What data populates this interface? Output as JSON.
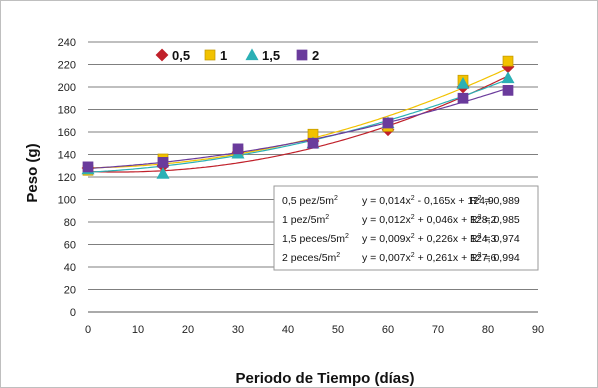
{
  "chart_data": {
    "type": "scatter",
    "xlabel": "Periodo de Tiempo (días)",
    "ylabel": "Peso (g)",
    "xlim": [
      0,
      90
    ],
    "ylim": [
      0,
      240
    ],
    "x_ticks": [
      "0",
      "10",
      "20",
      "30",
      "40",
      "50",
      "60",
      "70",
      "80",
      "90"
    ],
    "y_ticks": [
      "0",
      "20",
      "40",
      "60",
      "80",
      "100",
      "120",
      "140",
      "160",
      "180",
      "200",
      "220",
      "240"
    ],
    "grid": "horizontal",
    "legend_position": "top-left",
    "trendline": "polynomial-2",
    "series": [
      {
        "name": "0,5",
        "marker": "diamond",
        "color": "#c0202a",
        "x": [
          0,
          15,
          30,
          45,
          60,
          75,
          84
        ],
        "y": [
          128,
          130,
          142,
          152,
          162,
          200,
          218
        ],
        "fit": [
          0.014,
          -0.165,
          124.9
        ]
      },
      {
        "name": "1",
        "marker": "square",
        "color": "#f2c200",
        "x": [
          0,
          15,
          30,
          45,
          60,
          75,
          84
        ],
        "y": [
          126,
          136,
          142,
          158,
          165,
          206,
          223
        ],
        "fit": [
          0.012,
          0.046,
          128.2
        ]
      },
      {
        "name": "1,5",
        "marker": "triangle",
        "color": "#2bb0b5",
        "x": [
          0,
          15,
          30,
          45,
          60,
          75,
          84
        ],
        "y": [
          127,
          123,
          141,
          150,
          168,
          203,
          208
        ],
        "fit": [
          0.009,
          0.226,
          124.3
        ]
      },
      {
        "name": "2",
        "marker": "square",
        "color": "#6a3b9c",
        "x": [
          0,
          15,
          30,
          45,
          60,
          75,
          84
        ],
        "y": [
          129,
          133,
          145,
          150,
          168,
          190,
          197
        ],
        "fit": [
          0.007,
          0.261,
          127.6
        ]
      }
    ],
    "equations": [
      {
        "label": "0,5 pez/5m",
        "formula": "y = 0,014x",
        "rest": " - 0,165x + 124,9",
        "r2": "R",
        "r2_value": " = 0,989"
      },
      {
        "label": "1 pez/5m",
        "formula": "y = 0,012x",
        "rest": " + 0,046x + 128,2",
        "r2": "R",
        "r2_value": " = 0,985"
      },
      {
        "label": "1,5 peces/5m",
        "formula": "y = 0,009x",
        "rest": " + 0,226x + 124,3",
        "r2": "R",
        "r2_value": " = 0,974"
      },
      {
        "label": "2 peces/5m",
        "formula": "y = 0,007x",
        "rest": " + 0,261x + 127,6",
        "r2": "R",
        "r2_value": " = 0,994"
      }
    ],
    "superscript": "2"
  }
}
